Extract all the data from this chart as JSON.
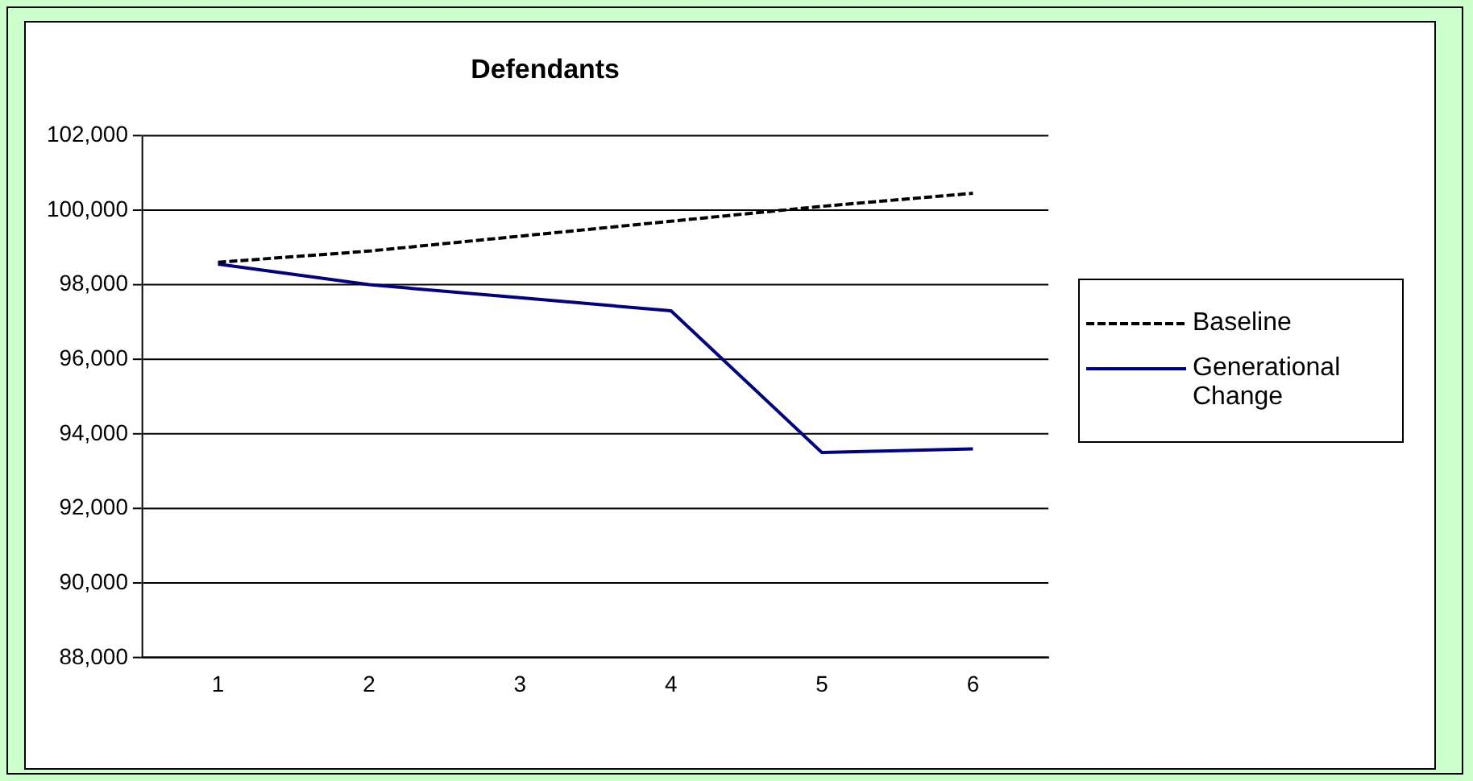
{
  "chart_data": {
    "type": "line",
    "title": "Defendants",
    "categories": [
      "1",
      "2",
      "3",
      "4",
      "5",
      "6"
    ],
    "series": [
      {
        "name": "Baseline",
        "color": "#000000",
        "line_style": "dashed",
        "values": [
          98600,
          98900,
          99300,
          99700,
          100100,
          100450
        ]
      },
      {
        "name": "Generational Change",
        "color": "#000080",
        "line_style": "solid",
        "values": [
          98550,
          98000,
          97650,
          97300,
          93500,
          93600
        ]
      }
    ],
    "ylim": [
      88000,
      102000
    ],
    "yticks": [
      {
        "value": 88000,
        "label": "88,000"
      },
      {
        "value": 90000,
        "label": "90,000"
      },
      {
        "value": 92000,
        "label": "92,000"
      },
      {
        "value": 94000,
        "label": "94,000"
      },
      {
        "value": 96000,
        "label": "96,000"
      },
      {
        "value": 98000,
        "label": "98,000"
      },
      {
        "value": 100000,
        "label": "100,000"
      },
      {
        "value": 102000,
        "label": "102,000"
      }
    ],
    "grid": "y",
    "legend": "right",
    "marker": "none"
  }
}
